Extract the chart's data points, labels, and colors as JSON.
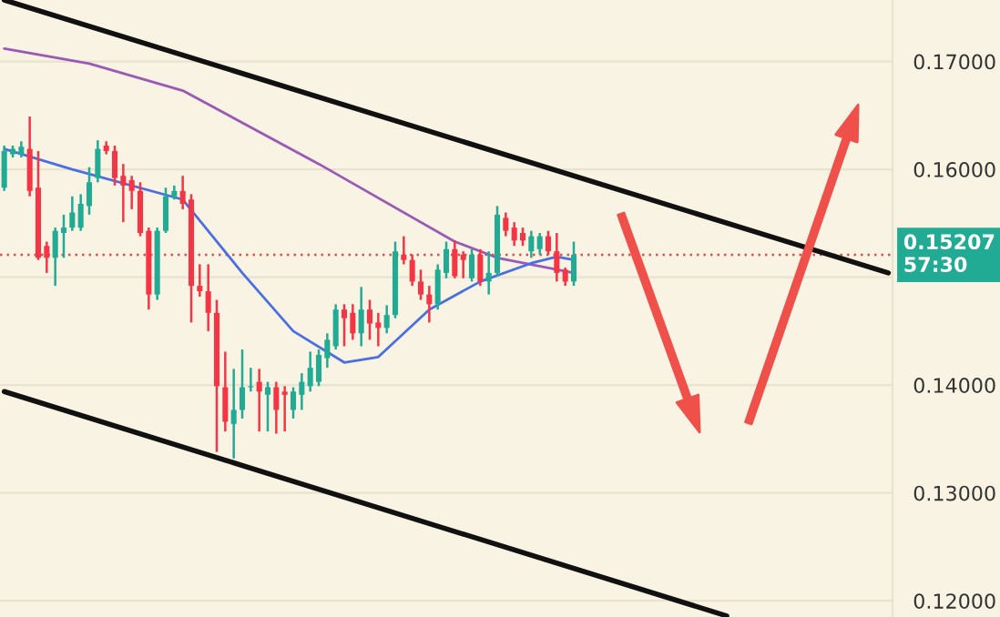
{
  "chart_data": {
    "type": "candlestick",
    "categories": [
      null,
      null,
      null,
      null,
      null,
      null,
      null,
      null,
      null,
      null,
      null,
      null,
      null,
      null,
      null,
      null,
      null,
      null,
      null,
      null,
      null,
      null,
      null,
      null,
      null,
      null,
      null,
      null,
      null,
      null,
      null,
      null,
      null,
      null,
      null,
      null,
      null,
      null,
      null,
      null,
      null,
      null,
      null,
      null,
      null,
      null,
      null,
      null,
      null,
      null,
      null,
      null,
      null,
      null,
      null,
      null,
      null,
      null,
      null,
      null,
      null,
      null,
      null,
      null,
      null,
      null,
      null,
      null,
      null,
      null,
      null,
      null,
      null,
      null,
      null,
      null,
      null,
      null,
      null,
      null,
      null,
      null,
      null,
      null,
      null,
      null,
      null,
      null,
      null,
      null,
      null,
      null,
      null,
      null,
      null,
      null,
      null,
      null,
      null,
      null,
      null,
      null,
      null,
      null,
      null
    ],
    "ohlc": [
      [
        0.1583,
        0.1622,
        0.158,
        0.1617
      ],
      [
        0.1614,
        0.1622,
        0.1611,
        0.1619
      ],
      [
        0.1614,
        0.1626,
        0.1611,
        0.1621
      ],
      [
        0.1619,
        0.1649,
        0.1575,
        0.158
      ],
      [
        0.1583,
        0.1617,
        0.1516,
        0.1518
      ],
      [
        0.1529,
        0.1533,
        0.1504,
        0.1518
      ],
      [
        0.1518,
        0.1546,
        0.1492,
        0.1543
      ],
      [
        0.1541,
        0.1558,
        0.1518,
        0.1546
      ],
      [
        0.1546,
        0.1575,
        0.1543,
        0.156
      ],
      [
        0.1546,
        0.1577,
        0.1543,
        0.1568
      ],
      [
        0.1566,
        0.1602,
        0.1558,
        0.1588
      ],
      [
        0.1592,
        0.1627,
        0.1588,
        0.1619
      ],
      [
        0.1622,
        0.1626,
        0.1614,
        0.1617
      ],
      [
        0.1617,
        0.1622,
        0.1585,
        0.1592
      ],
      [
        0.1594,
        0.1605,
        0.1551,
        0.1585
      ],
      [
        0.159,
        0.1594,
        0.1563,
        0.158
      ],
      [
        0.158,
        0.1588,
        0.1538,
        0.1541
      ],
      [
        0.1543,
        0.1546,
        0.147,
        0.1484
      ],
      [
        0.1484,
        0.1546,
        0.1479,
        0.1543
      ],
      [
        0.1543,
        0.1583,
        0.1541,
        0.1575
      ],
      [
        0.1575,
        0.1585,
        0.1572,
        0.158
      ],
      [
        0.158,
        0.1594,
        0.1563,
        0.1568
      ],
      [
        0.1572,
        0.1577,
        0.1458,
        0.1492
      ],
      [
        0.1492,
        0.1512,
        0.1482,
        0.1487
      ],
      [
        0.1487,
        0.1512,
        0.145,
        0.1467
      ],
      [
        0.1467,
        0.1479,
        0.1338,
        0.1399
      ],
      [
        0.1398,
        0.1431,
        0.1357,
        0.1366
      ],
      [
        0.1364,
        0.1415,
        0.1332,
        0.1377
      ],
      [
        0.1377,
        0.1433,
        0.1369,
        0.1398
      ],
      [
        0.1398,
        0.1416,
        0.1394,
        0.1399
      ],
      [
        0.1403,
        0.1415,
        0.1357,
        0.1394
      ],
      [
        0.1391,
        0.1403,
        0.1357,
        0.1398
      ],
      [
        0.1398,
        0.1403,
        0.1355,
        0.1377
      ],
      [
        0.1394,
        0.1399,
        0.1357,
        0.1391
      ],
      [
        0.1377,
        0.1398,
        0.1369,
        0.1394
      ],
      [
        0.1391,
        0.1411,
        0.1377,
        0.1403
      ],
      [
        0.1399,
        0.1431,
        0.1394,
        0.1416
      ],
      [
        0.1403,
        0.1433,
        0.1399,
        0.1428
      ],
      [
        0.1425,
        0.1448,
        0.1416,
        0.1442
      ],
      [
        0.1436,
        0.1475,
        0.1433,
        0.147
      ],
      [
        0.147,
        0.1475,
        0.1436,
        0.1462
      ],
      [
        0.1467,
        0.1475,
        0.1442,
        0.1448
      ],
      [
        0.1448,
        0.1491,
        0.1436,
        0.147
      ],
      [
        0.147,
        0.1479,
        0.1442,
        0.1457
      ],
      [
        0.1458,
        0.1467,
        0.1436,
        0.1453
      ],
      [
        0.1453,
        0.1474,
        0.1448,
        0.1465
      ],
      [
        0.1465,
        0.1533,
        0.1462,
        0.1524
      ],
      [
        0.1521,
        0.1538,
        0.1512,
        0.1516
      ],
      [
        0.1516,
        0.1521,
        0.1492,
        0.1496
      ],
      [
        0.1496,
        0.1507,
        0.1479,
        0.1484
      ],
      [
        0.1484,
        0.1492,
        0.1458,
        0.1475
      ],
      [
        0.1475,
        0.1512,
        0.147,
        0.1507
      ],
      [
        0.1504,
        0.1533,
        0.1499,
        0.1526
      ],
      [
        0.1526,
        0.1534,
        0.1499,
        0.1501
      ],
      [
        0.1521,
        0.1524,
        0.1499,
        0.1516
      ],
      [
        0.1499,
        0.1526,
        0.1496,
        0.1521
      ],
      [
        0.1521,
        0.1526,
        0.1492,
        0.1496
      ],
      [
        0.1496,
        0.1524,
        0.1484,
        0.1504
      ],
      [
        0.1504,
        0.1566,
        0.1501,
        0.1558
      ],
      [
        0.1555,
        0.156,
        0.1538,
        0.1543
      ],
      [
        0.1546,
        0.1551,
        0.1529,
        0.1534
      ],
      [
        0.1541,
        0.1546,
        0.1529,
        0.1534
      ],
      [
        0.1524,
        0.1543,
        0.1518,
        0.1538
      ],
      [
        0.1526,
        0.1541,
        0.1521,
        0.1538
      ],
      [
        0.1538,
        0.1543,
        0.1521,
        0.1524
      ],
      [
        0.1524,
        0.1541,
        0.1496,
        0.1504
      ],
      [
        0.1507,
        0.1509,
        0.1492,
        0.1496
      ],
      [
        0.1496,
        0.1533,
        0.1492,
        0.1521
      ],
      null,
      null,
      null,
      null,
      null,
      null,
      null,
      null,
      null,
      null,
      null,
      null,
      null,
      null,
      null,
      null,
      null,
      null,
      null,
      null,
      null,
      null,
      null,
      null,
      null,
      null,
      null,
      null,
      null,
      null,
      null,
      null,
      null,
      null,
      null,
      null,
      null
    ],
    "colors": [
      "#22ab94",
      "#22ab94",
      "#22ab94",
      "#f23645",
      "#f23645",
      "#f23645",
      "#22ab94",
      "#22ab94",
      "#22ab94",
      "#22ab94",
      "#22ab94",
      "#22ab94",
      "#f23645",
      "#f23645",
      "#f23645",
      "#f23645",
      "#f23645",
      "#f23645",
      "#22ab94",
      "#22ab94",
      "#22ab94",
      "#f23645",
      "#f23645",
      "#f23645",
      "#f23645",
      "#f23645",
      "#f23645",
      "#22ab94",
      "#22ab94",
      "#22ab94",
      "#f23645",
      "#22ab94",
      "#f23645",
      "#f23645",
      "#22ab94",
      "#22ab94",
      "#22ab94",
      "#22ab94",
      "#22ab94",
      "#22ab94",
      "#f23645",
      "#f23645",
      "#22ab94",
      "#f23645",
      "#f23645",
      "#22ab94",
      "#22ab94",
      "#f23645",
      "#f23645",
      "#f23645",
      "#f23645",
      "#22ab94",
      "#22ab94",
      "#f23645",
      "#f23645",
      "#22ab94",
      "#f23645",
      "#22ab94",
      "#22ab94",
      "#f23645",
      "#f23645",
      "#f23645",
      "#22ab94",
      "#22ab94",
      "#f23645",
      "#f23645",
      "#f23645",
      "#22ab94",
      null,
      null,
      null,
      null,
      null,
      null,
      null,
      null,
      null,
      null,
      null,
      null,
      null,
      null,
      null,
      null,
      null,
      null,
      null,
      null,
      null,
      null,
      null,
      null,
      null,
      null,
      null,
      null,
      null,
      null,
      null,
      null,
      null,
      null,
      null,
      null,
      null
    ],
    "series": [
      {
        "type": "line",
        "color": "#9b59b6",
        "values": [
          0.1712,
          null,
          null,
          null,
          null,
          null,
          null,
          null,
          null,
          null,
          0.1698,
          null,
          null,
          null,
          null,
          null,
          null,
          null,
          null,
          null,
          null,
          0.1673,
          null,
          null,
          null,
          null,
          null,
          null,
          null,
          null,
          null,
          null,
          null,
          null,
          null,
          null,
          null,
          0.1605,
          null,
          null,
          null,
          null,
          null,
          null,
          null,
          null,
          null,
          null,
          null,
          null,
          null,
          null,
          null,
          0.1533,
          null,
          null,
          null,
          null,
          0.1518,
          null,
          null,
          null,
          null,
          null,
          null,
          null,
          null,
          0.1504,
          null,
          null,
          null,
          null,
          null,
          null,
          null,
          null,
          null,
          null,
          null,
          null,
          null,
          null,
          null,
          null,
          null,
          null,
          null,
          null,
          null,
          null,
          null,
          null,
          null,
          null,
          null,
          null,
          null,
          null,
          null,
          null,
          null,
          null,
          null,
          null,
          null
        ]
      },
      {
        "type": "line",
        "color": "#4a6fe3",
        "values": [
          0.1619,
          null,
          null,
          null,
          null,
          null,
          null,
          null,
          0.16,
          null,
          null,
          null,
          null,
          null,
          null,
          null,
          null,
          null,
          null,
          null,
          null,
          0.1572,
          null,
          null,
          null,
          null,
          null,
          null,
          0.1504,
          null,
          null,
          null,
          null,
          null,
          0.145,
          null,
          null,
          null,
          null,
          null,
          0.1421,
          null,
          null,
          null,
          0.1426,
          null,
          null,
          null,
          null,
          null,
          0.147,
          null,
          null,
          null,
          null,
          null,
          0.1496,
          null,
          null,
          null,
          null,
          null,
          0.1513,
          null,
          null,
          0.1519,
          null,
          0.1516,
          null,
          null,
          null,
          null,
          null,
          null,
          null,
          null,
          null,
          null,
          null,
          null,
          null,
          null,
          null,
          null,
          null,
          null,
          null,
          null,
          null,
          null,
          null,
          null,
          null,
          null,
          null,
          null,
          null,
          null,
          null,
          null,
          null,
          null,
          null,
          null,
          null
        ]
      },
      {
        "type": "line",
        "color": "#111111",
        "values": [
          0.1757,
          null,
          null,
          null,
          null,
          null,
          null,
          null,
          null,
          null,
          null,
          null,
          null,
          null,
          null,
          null,
          null,
          null,
          null,
          null,
          null,
          null,
          null,
          null,
          null,
          null,
          null,
          null,
          null,
          null,
          null,
          null,
          null,
          null,
          null,
          null,
          null,
          null,
          null,
          null,
          null,
          null,
          null,
          null,
          null,
          null,
          null,
          null,
          null,
          null,
          null,
          null,
          null,
          null,
          null,
          null,
          null,
          null,
          null,
          null,
          null,
          null,
          null,
          null,
          null,
          null,
          null,
          null,
          null,
          null,
          null,
          null,
          null,
          null,
          null,
          null,
          null,
          null,
          null,
          null,
          null,
          null,
          null,
          null,
          null,
          null,
          null,
          null,
          null,
          null,
          null,
          null,
          null,
          null,
          null,
          null,
          null,
          null,
          null,
          null,
          null,
          null,
          null,
          null,
          0.1504
        ]
      },
      {
        "type": "line",
        "color": "#111111",
        "values": [
          0.1394,
          null,
          null,
          null,
          null,
          null,
          null,
          null,
          null,
          null,
          null,
          null,
          null,
          null,
          null,
          null,
          null,
          null,
          null,
          null,
          null,
          null,
          null,
          null,
          null,
          null,
          null,
          null,
          null,
          null,
          null,
          null,
          null,
          null,
          null,
          null,
          null,
          null,
          null,
          null,
          null,
          null,
          null,
          null,
          null,
          null,
          null,
          null,
          null,
          null,
          null,
          null,
          null,
          null,
          null,
          null,
          null,
          null,
          null,
          null,
          null,
          null,
          null,
          null,
          null,
          null,
          null,
          null,
          null,
          null,
          null,
          null,
          null,
          null,
          null,
          null,
          null,
          null,
          null,
          null,
          null,
          null,
          null,
          null,
          null,
          0.1186,
          null,
          null,
          null,
          null,
          null,
          null,
          null,
          null,
          null,
          null,
          null,
          null,
          null,
          null,
          null,
          null,
          null,
          null,
          null
        ]
      }
    ],
    "ref_lines": [
      {
        "axis": "y",
        "value": 0.15207,
        "label": "0.15207\n57:30",
        "color": "#e0504a",
        "line_style": "dotted"
      }
    ],
    "ylim": [
      0.1185,
      0.1757
    ],
    "yticks": [
      {
        "value": 0.12,
        "label": "0.12000"
      },
      {
        "value": 0.13,
        "label": "0.13000"
      },
      {
        "value": 0.14,
        "label": "0.14000"
      },
      {
        "value": 0.15,
        "label": null
      },
      {
        "value": 0.16,
        "label": "0.16000"
      },
      {
        "value": 0.17,
        "label": "0.17000"
      }
    ],
    "grid": "y",
    "tick_labels": "y"
  }
}
